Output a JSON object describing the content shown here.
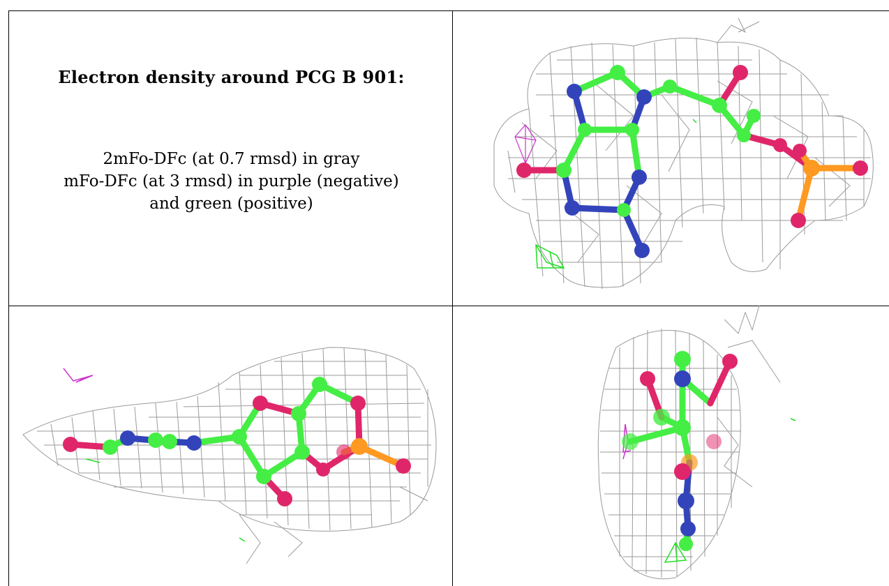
{
  "panel_title": "Electron density around PCG B 901:",
  "legend": {
    "line1": "2mFo-DFc (at 0.7 rmsd) in gray",
    "line2": "mFo-DFc (at 3 rmsd) in purple (negative)",
    "line3": "and green (positive)"
  },
  "colors": {
    "mesh_2fofc": "#9a9a9a",
    "difference_negative": "#cc33cc",
    "difference_positive": "#22dd22",
    "carbon": "#44ee44",
    "nitrogen": "#3344bb",
    "oxygen": "#e0266a",
    "phosphorus": "#ff9922"
  },
  "views": [
    "view-top-right",
    "view-bottom-left",
    "view-bottom-right"
  ]
}
